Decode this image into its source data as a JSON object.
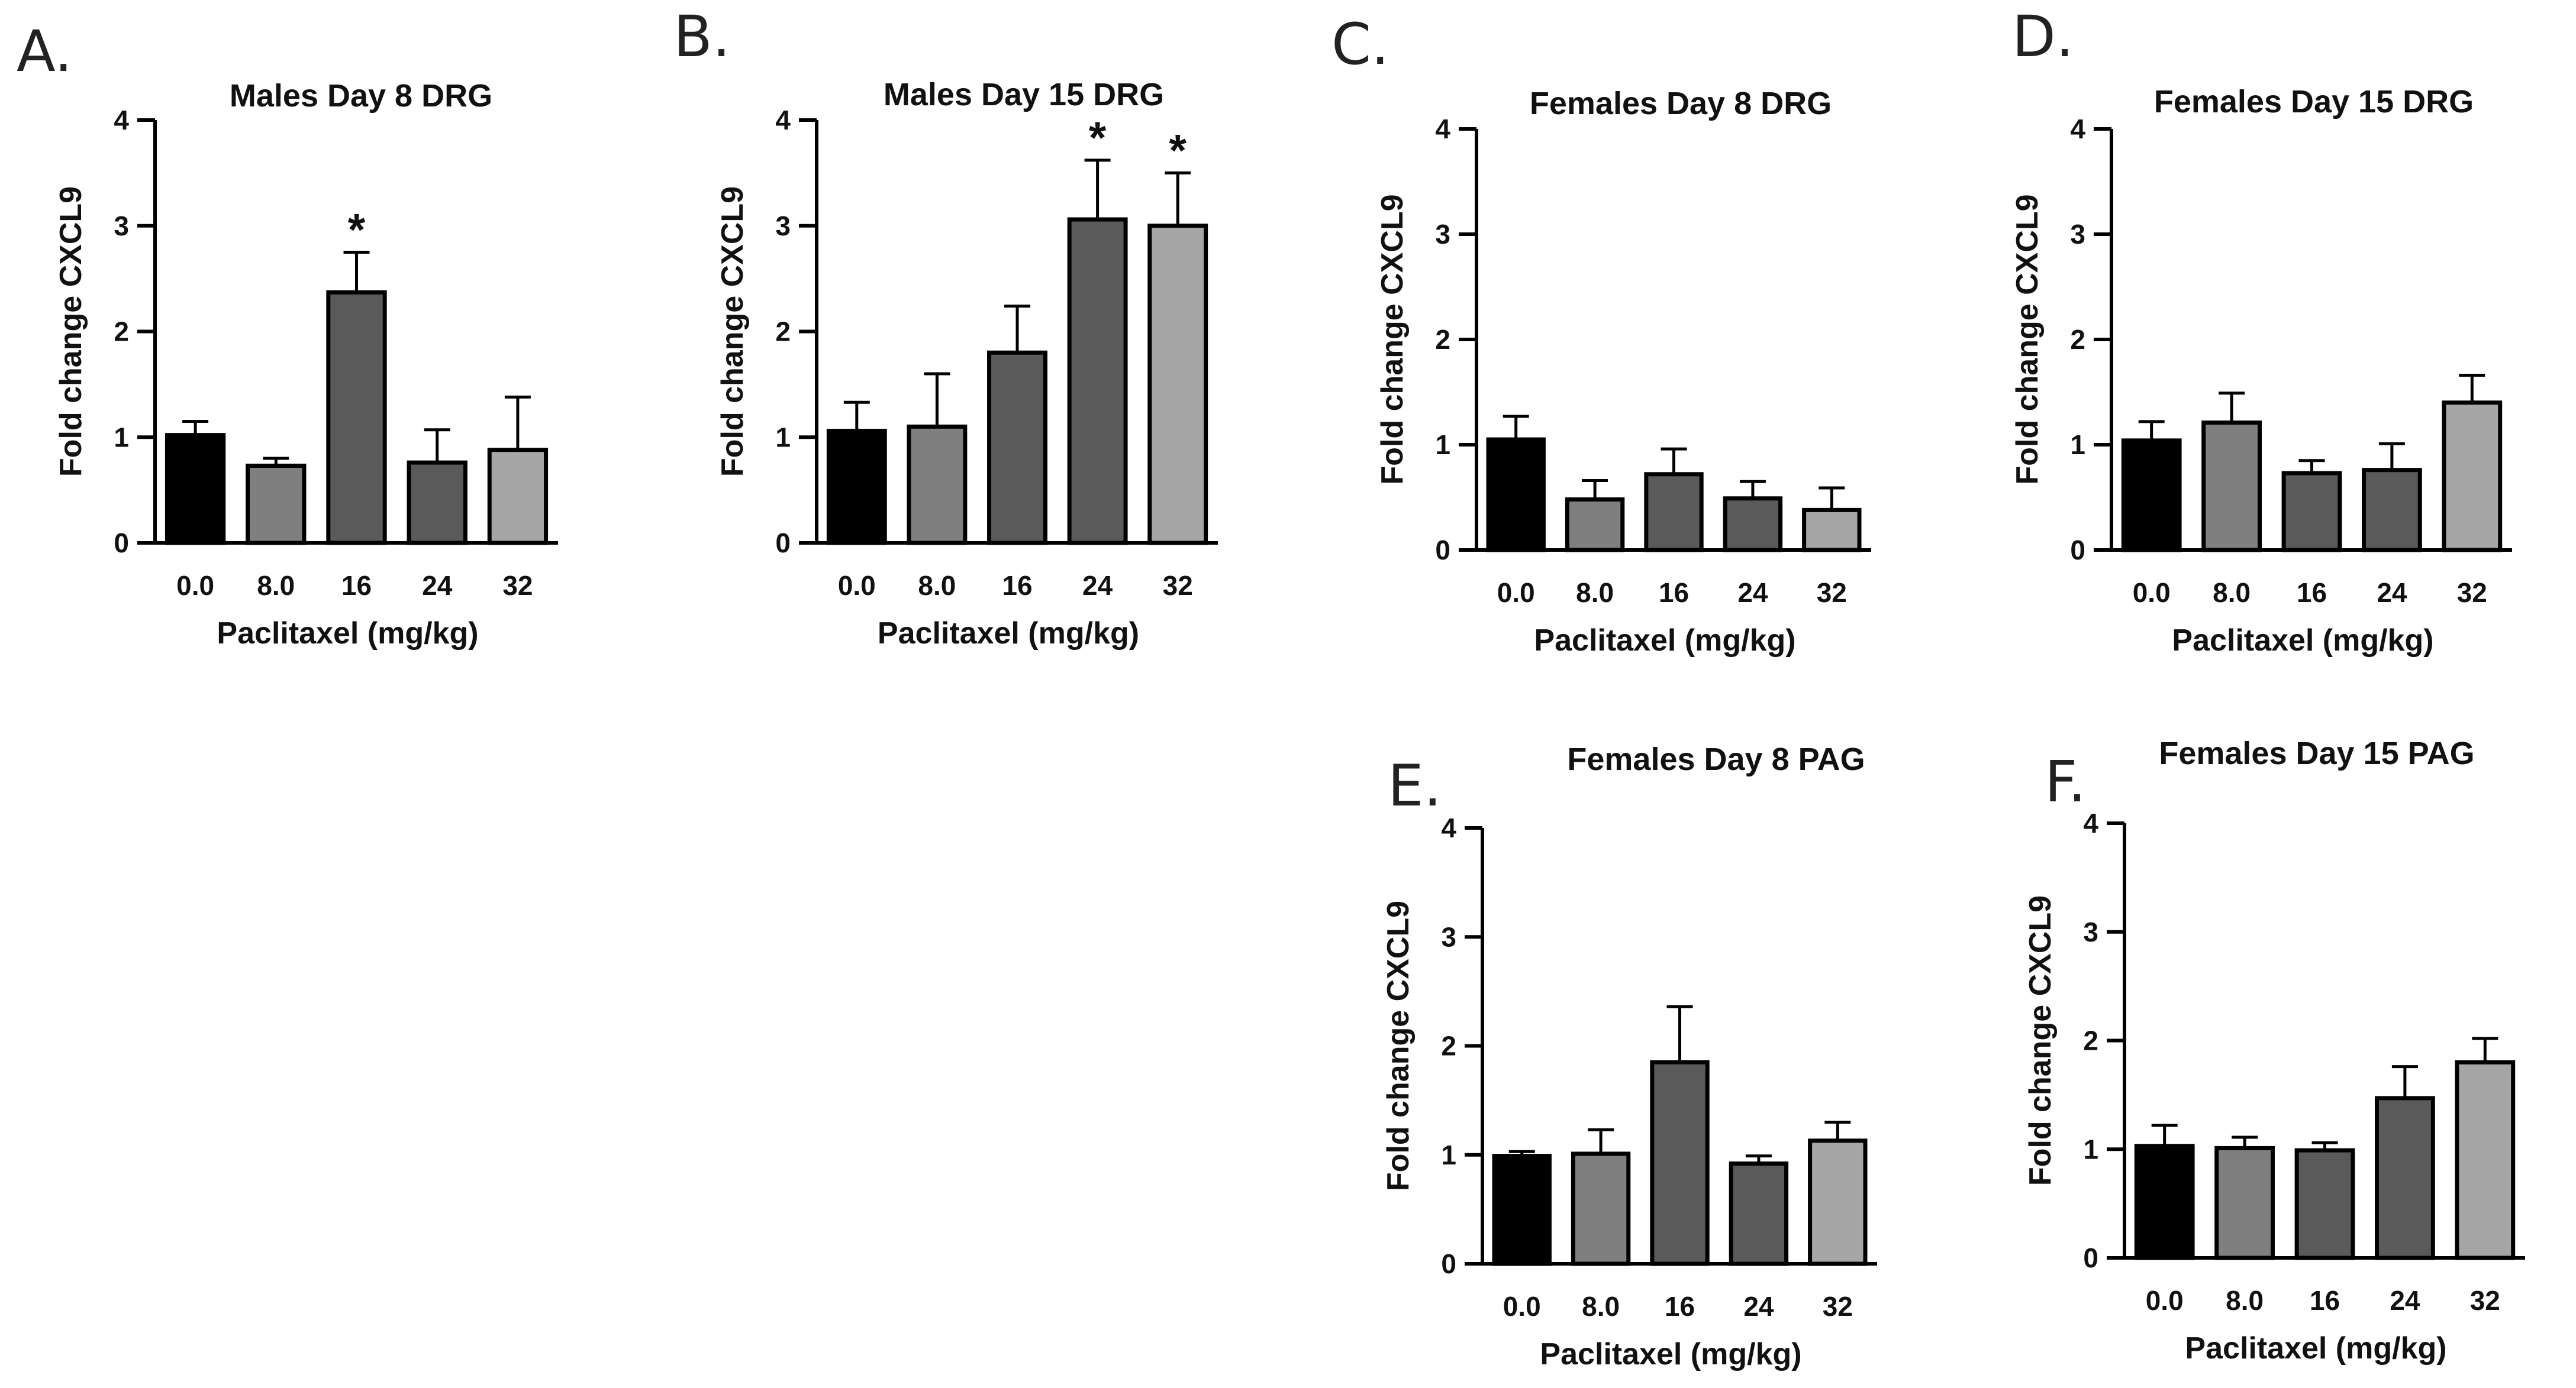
{
  "chart_data": [
    {
      "type": "bar",
      "panel": "A.",
      "title": "Males Day 8 DRG",
      "xlabel": "Paclitaxel (mg/kg)",
      "ylabel": "Fold change CXCL9",
      "categories": [
        "0.0",
        "8.0",
        "16",
        "24",
        "32"
      ],
      "values": [
        1.02,
        0.73,
        2.37,
        0.76,
        0.88
      ],
      "errors": [
        0.13,
        0.07,
        0.38,
        0.31,
        0.5
      ],
      "significance": [
        "",
        "",
        "*",
        "",
        ""
      ],
      "ylim": [
        0,
        4
      ],
      "yticks": [
        "0",
        "1",
        "2",
        "3",
        "4"
      ],
      "bar_colors": [
        "#000000",
        "#7f7f7f",
        "#5a5a5a",
        "#5a5a5a",
        "#a6a6a6"
      ]
    },
    {
      "type": "bar",
      "panel": "B.",
      "title": "Males Day 15 DRG",
      "xlabel": "Paclitaxel (mg/kg)",
      "ylabel": "Fold change CXCL9",
      "categories": [
        "0.0",
        "8.0",
        "16",
        "24",
        "32"
      ],
      "values": [
        1.06,
        1.1,
        1.8,
        3.06,
        3.0
      ],
      "errors": [
        0.27,
        0.5,
        0.44,
        0.56,
        0.5
      ],
      "significance": [
        "",
        "",
        "",
        "*",
        "*"
      ],
      "ylim": [
        0,
        4
      ],
      "yticks": [
        "0",
        "1",
        "2",
        "3",
        "4"
      ],
      "bar_colors": [
        "#000000",
        "#7f7f7f",
        "#5a5a5a",
        "#5a5a5a",
        "#a6a6a6"
      ]
    },
    {
      "type": "bar",
      "panel": "C.",
      "title": "Females Day 8 DRG",
      "xlabel": "Paclitaxel (mg/kg)",
      "ylabel": "Fold change CXCL9",
      "categories": [
        "0.0",
        "8.0",
        "16",
        "24",
        "32"
      ],
      "values": [
        1.05,
        0.48,
        0.72,
        0.49,
        0.38
      ],
      "errors": [
        0.22,
        0.18,
        0.24,
        0.16,
        0.21
      ],
      "significance": [
        "",
        "",
        "",
        "",
        ""
      ],
      "ylim": [
        0,
        4
      ],
      "yticks": [
        "0",
        "1",
        "2",
        "3",
        "4"
      ],
      "bar_colors": [
        "#000000",
        "#7f7f7f",
        "#5a5a5a",
        "#5a5a5a",
        "#a6a6a6"
      ]
    },
    {
      "type": "bar",
      "panel": "D.",
      "title": "Females Day 15 DRG",
      "xlabel": "Paclitaxel (mg/kg)",
      "ylabel": "Fold change CXCL9",
      "categories": [
        "0.0",
        "8.0",
        "16",
        "24",
        "32"
      ],
      "values": [
        1.04,
        1.21,
        0.73,
        0.76,
        1.4
      ],
      "errors": [
        0.18,
        0.28,
        0.12,
        0.25,
        0.26
      ],
      "significance": [
        "",
        "",
        "",
        "",
        ""
      ],
      "ylim": [
        0,
        4
      ],
      "yticks": [
        "0",
        "1",
        "2",
        "3",
        "4"
      ],
      "bar_colors": [
        "#000000",
        "#7f7f7f",
        "#5a5a5a",
        "#5a5a5a",
        "#a6a6a6"
      ]
    },
    {
      "type": "bar",
      "panel": "E.",
      "title": "Females Day 8 PAG",
      "xlabel": "Paclitaxel (mg/kg)",
      "ylabel": "Fold change CXCL9",
      "categories": [
        "0.0",
        "8.0",
        "16",
        "24",
        "32"
      ],
      "values": [
        0.99,
        1.01,
        1.85,
        0.92,
        1.13
      ],
      "errors": [
        0.04,
        0.22,
        0.51,
        0.07,
        0.17
      ],
      "significance": [
        "",
        "",
        "",
        "",
        ""
      ],
      "ylim": [
        0,
        4
      ],
      "yticks": [
        "0",
        "1",
        "2",
        "3",
        "4"
      ],
      "bar_colors": [
        "#000000",
        "#7f7f7f",
        "#5a5a5a",
        "#5a5a5a",
        "#a6a6a6"
      ]
    },
    {
      "type": "bar",
      "panel": "F.",
      "title": "Females Day 15 PAG",
      "xlabel": "Paclitaxel (mg/kg)",
      "ylabel": "Fold change CXCL9",
      "categories": [
        "0.0",
        "8.0",
        "16",
        "24",
        "32"
      ],
      "values": [
        1.03,
        1.01,
        0.99,
        1.47,
        1.8
      ],
      "errors": [
        0.19,
        0.1,
        0.07,
        0.29,
        0.22
      ],
      "significance": [
        "",
        "",
        "",
        "",
        ""
      ],
      "ylim": [
        0,
        4
      ],
      "yticks": [
        "0",
        "1",
        "2",
        "3",
        "4"
      ],
      "bar_colors": [
        "#000000",
        "#7f7f7f",
        "#5a5a5a",
        "#5a5a5a",
        "#a6a6a6"
      ]
    }
  ]
}
